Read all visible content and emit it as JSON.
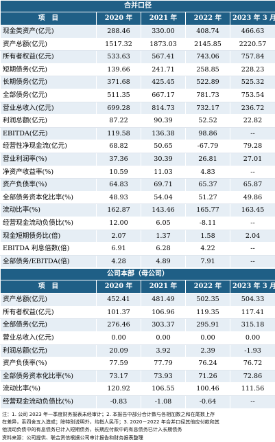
{
  "consolidated": {
    "title": "合并口径",
    "headers": [
      "项　目",
      "2020 年",
      "2021 年",
      "2022 年",
      "2023 年 3 月"
    ],
    "rows": [
      [
        "现金类资产(亿元)",
        "288.46",
        "330.00",
        "408.74",
        "466.63"
      ],
      [
        "资产总额(亿元)",
        "1517.32",
        "1873.03",
        "2145.85",
        "2220.57"
      ],
      [
        "所有者权益(亿元)",
        "533.63",
        "567.41",
        "743.06",
        "757.84"
      ],
      [
        "短期债务(亿元)",
        "139.66",
        "241.71",
        "258.85",
        "228.23"
      ],
      [
        "长期债务(亿元)",
        "371.68",
        "425.45",
        "522.89",
        "525.32"
      ],
      [
        "全部债务(亿元)",
        "511.35",
        "667.17",
        "781.73",
        "753.54"
      ],
      [
        "营业总收入(亿元)",
        "699.28",
        "814.73",
        "732.17",
        "236.72"
      ],
      [
        "利润总额(亿元)",
        "87.22",
        "90.39",
        "52.52",
        "22.82"
      ],
      [
        "EBITDA(亿元)",
        "119.58",
        "136.38",
        "98.86",
        "--"
      ],
      [
        "经营性净现金流(亿元)",
        "68.82",
        "50.65",
        "-67.79",
        "79.28"
      ],
      [
        "营业利润率(%)",
        "37.36",
        "30.39",
        "26.81",
        "27.01"
      ],
      [
        "净资产收益率(%)",
        "10.59",
        "11.03",
        "4.83",
        "--"
      ],
      [
        "资产负债率(%)",
        "64.83",
        "69.71",
        "65.37",
        "65.87"
      ],
      [
        "全部债务资本化比率(%)",
        "48.93",
        "54.04",
        "51.27",
        "49.86"
      ],
      [
        "流动比率(%)",
        "162.87",
        "143.46",
        "165.77",
        "163.45"
      ],
      [
        "经营现金流动负债比(%)",
        "12.00",
        "6.05",
        "-8.11",
        "--"
      ],
      [
        "现金短期债务比(倍)",
        "2.07",
        "1.37",
        "1.58",
        "2.04"
      ],
      [
        "EBITDA 利息倍数(倍)",
        "6.91",
        "6.28",
        "4.22",
        "--"
      ],
      [
        "全部债务/EBITDA(倍)",
        "4.28",
        "4.89",
        "7.91",
        "--"
      ]
    ]
  },
  "parent": {
    "title": "公司本部（母公司）",
    "headers": [
      "项　目",
      "2020 年",
      "2021 年",
      "2022 年",
      "2023 年 3 月"
    ],
    "rows": [
      [
        "资产总额(亿元)",
        "452.41",
        "481.49",
        "502.35",
        "504.33"
      ],
      [
        "所有者权益(亿元)",
        "101.37",
        "106.96",
        "119.35",
        "117.41"
      ],
      [
        "全部债务(亿元)",
        "276.46",
        "303.37",
        "295.91",
        "315.18"
      ],
      [
        "营业总收入(亿元)",
        "0.00",
        "0.00",
        "0.00",
        "0.00"
      ],
      [
        "利润总额(亿元)",
        "20.09",
        "3.92",
        "2.39",
        "-1.93"
      ],
      [
        "资产负债率(%)",
        "77.59",
        "77.79",
        "76.24",
        "76.72"
      ],
      [
        "全部债务资本化比率(%)",
        "73.17",
        "73.93",
        "71.26",
        "72.86"
      ],
      [
        "流动比率(%)",
        "120.92",
        "106.55",
        "100.46",
        "111.56"
      ],
      [
        "经营现金流动负债比(%)",
        "-0.83",
        "-1.08",
        "-0.64",
        "--"
      ]
    ]
  },
  "notes": {
    "line1": "注：1. 公司 2023 年一季度财务报表未经审计；2. 本报告中部分合计数与各相加数之和在尾数上存",
    "line2": "在差异，系四舍五入造成；除特别说明外，均指人民币；3. 2020－2022 年合并口径其他应付款和其",
    "line3": "他流动负债中的有息债务已计入短期债务，长期应付款中的有息债务已计入长期债务",
    "line4": "资料来源：公司提供、联合资信根据公司审计报告和财务报表整理"
  },
  "colors": {
    "header_bg": "#1f5f86",
    "band_bg": "#e6eef5"
  }
}
